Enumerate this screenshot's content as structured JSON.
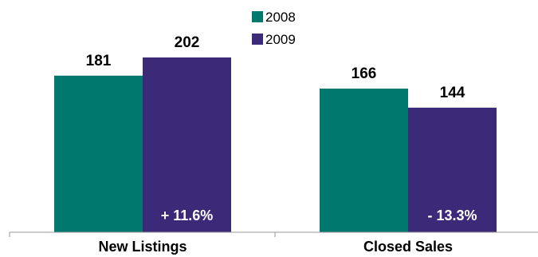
{
  "chart_data": {
    "type": "bar",
    "categories": [
      "New Listings",
      "Closed Sales"
    ],
    "series": [
      {
        "name": "2008",
        "values": [
          181,
          166
        ],
        "color": "#00786e"
      },
      {
        "name": "2009",
        "values": [
          202,
          144
        ],
        "color": "#3b2a78"
      }
    ],
    "change_labels": [
      "+ 11.6%",
      "- 13.3%"
    ],
    "ylim": [
      0,
      250
    ],
    "grid": false,
    "legend_position": "top-center",
    "title": "",
    "xlabel": "",
    "ylabel": ""
  }
}
